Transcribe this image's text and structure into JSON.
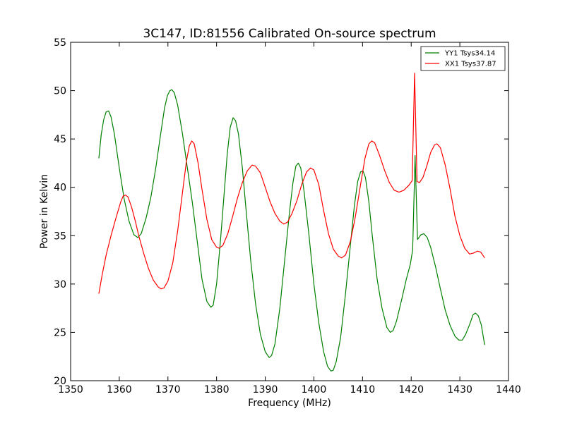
{
  "chart_data": {
    "type": "line",
    "title": "3C147, ID:81556 Calibrated On-source spectrum",
    "xlabel": "Frequency (MHz)",
    "ylabel": "Power in Kelvin",
    "xlim": [
      1350,
      1440
    ],
    "ylim": [
      20,
      55
    ],
    "xticks": [
      1350,
      1360,
      1370,
      1380,
      1390,
      1400,
      1410,
      1420,
      1430,
      1440
    ],
    "yticks": [
      20,
      25,
      30,
      35,
      40,
      45,
      50,
      55
    ],
    "grid": false,
    "legend_position": "top-right",
    "series": [
      {
        "name": "YY1 Tsys34.14",
        "color": "#008000",
        "points": [
          [
            1355.8,
            43.0
          ],
          [
            1356.3,
            45.5
          ],
          [
            1356.8,
            47.0
          ],
          [
            1357.3,
            47.8
          ],
          [
            1357.8,
            47.9
          ],
          [
            1358.3,
            47.3
          ],
          [
            1359.0,
            45.5
          ],
          [
            1360.0,
            42.0
          ],
          [
            1361.0,
            38.8
          ],
          [
            1362.0,
            36.5
          ],
          [
            1363.0,
            35.1
          ],
          [
            1363.8,
            34.8
          ],
          [
            1364.5,
            35.2
          ],
          [
            1365.5,
            36.8
          ],
          [
            1366.5,
            39.0
          ],
          [
            1367.5,
            42.0
          ],
          [
            1368.5,
            45.5
          ],
          [
            1369.3,
            48.2
          ],
          [
            1369.9,
            49.5
          ],
          [
            1370.4,
            50.0
          ],
          [
            1370.8,
            50.1
          ],
          [
            1371.3,
            49.8
          ],
          [
            1372.0,
            48.5
          ],
          [
            1373.0,
            45.5
          ],
          [
            1374.0,
            42.0
          ],
          [
            1375.0,
            38.5
          ],
          [
            1376.0,
            34.5
          ],
          [
            1377.0,
            30.5
          ],
          [
            1378.0,
            28.2
          ],
          [
            1378.8,
            27.6
          ],
          [
            1379.3,
            27.8
          ],
          [
            1380.0,
            30.0
          ],
          [
            1380.8,
            34.5
          ],
          [
            1381.5,
            39.0
          ],
          [
            1382.2,
            43.5
          ],
          [
            1382.8,
            46.2
          ],
          [
            1383.4,
            47.2
          ],
          [
            1383.9,
            46.9
          ],
          [
            1384.5,
            45.5
          ],
          [
            1385.3,
            42.0
          ],
          [
            1386.0,
            38.0
          ],
          [
            1387.0,
            32.5
          ],
          [
            1388.0,
            28.0
          ],
          [
            1389.0,
            24.8
          ],
          [
            1390.0,
            23.0
          ],
          [
            1390.8,
            22.4
          ],
          [
            1391.3,
            22.6
          ],
          [
            1392.0,
            23.8
          ],
          [
            1393.0,
            27.5
          ],
          [
            1394.0,
            32.5
          ],
          [
            1395.0,
            37.5
          ],
          [
            1395.7,
            40.5
          ],
          [
            1396.3,
            42.2
          ],
          [
            1396.8,
            42.5
          ],
          [
            1397.3,
            42.0
          ],
          [
            1398.0,
            39.5
          ],
          [
            1399.0,
            35.0
          ],
          [
            1400.0,
            30.0
          ],
          [
            1401.0,
            26.0
          ],
          [
            1402.0,
            23.0
          ],
          [
            1402.8,
            21.5
          ],
          [
            1403.5,
            21.0
          ],
          [
            1404.0,
            21.1
          ],
          [
            1404.6,
            22.0
          ],
          [
            1405.5,
            24.5
          ],
          [
            1406.5,
            29.0
          ],
          [
            1407.5,
            34.0
          ],
          [
            1408.3,
            38.0
          ],
          [
            1409.0,
            40.6
          ],
          [
            1409.6,
            41.6
          ],
          [
            1410.1,
            41.7
          ],
          [
            1410.6,
            41.0
          ],
          [
            1411.3,
            38.5
          ],
          [
            1412.0,
            35.0
          ],
          [
            1413.0,
            30.5
          ],
          [
            1414.0,
            27.5
          ],
          [
            1415.0,
            25.5
          ],
          [
            1415.7,
            25.0
          ],
          [
            1416.3,
            25.2
          ],
          [
            1417.0,
            26.2
          ],
          [
            1418.0,
            28.3
          ],
          [
            1419.0,
            30.5
          ],
          [
            1419.8,
            32.0
          ],
          [
            1420.3,
            33.5
          ],
          [
            1420.8,
            43.3
          ],
          [
            1421.3,
            34.6
          ],
          [
            1422.0,
            35.1
          ],
          [
            1422.6,
            35.2
          ],
          [
            1423.3,
            34.8
          ],
          [
            1424.0,
            33.8
          ],
          [
            1425.0,
            31.8
          ],
          [
            1426.0,
            29.5
          ],
          [
            1427.0,
            27.3
          ],
          [
            1428.0,
            25.7
          ],
          [
            1429.0,
            24.6
          ],
          [
            1429.8,
            24.2
          ],
          [
            1430.5,
            24.2
          ],
          [
            1431.2,
            24.8
          ],
          [
            1432.0,
            25.8
          ],
          [
            1432.7,
            26.8
          ],
          [
            1433.2,
            27.0
          ],
          [
            1433.8,
            26.7
          ],
          [
            1434.4,
            25.8
          ],
          [
            1435.1,
            23.7
          ]
        ]
      },
      {
        "name": "XX1 Tsys37.87",
        "color": "#ff0000",
        "points": [
          [
            1355.8,
            29.0
          ],
          [
            1356.5,
            31.0
          ],
          [
            1357.3,
            33.0
          ],
          [
            1358.3,
            35.0
          ],
          [
            1359.3,
            36.8
          ],
          [
            1360.3,
            38.5
          ],
          [
            1360.8,
            39.1
          ],
          [
            1361.3,
            39.2
          ],
          [
            1361.8,
            39.0
          ],
          [
            1362.5,
            38.0
          ],
          [
            1363.3,
            36.5
          ],
          [
            1364.0,
            35.0
          ],
          [
            1365.0,
            33.2
          ],
          [
            1366.0,
            31.6
          ],
          [
            1367.0,
            30.4
          ],
          [
            1368.0,
            29.7
          ],
          [
            1368.6,
            29.5
          ],
          [
            1369.2,
            29.6
          ],
          [
            1370.0,
            30.3
          ],
          [
            1371.0,
            32.2
          ],
          [
            1372.0,
            35.5
          ],
          [
            1373.0,
            39.5
          ],
          [
            1373.8,
            42.7
          ],
          [
            1374.4,
            44.3
          ],
          [
            1374.9,
            44.8
          ],
          [
            1375.4,
            44.5
          ],
          [
            1376.2,
            42.5
          ],
          [
            1377.0,
            39.8
          ],
          [
            1378.0,
            36.7
          ],
          [
            1379.0,
            34.6
          ],
          [
            1380.0,
            33.8
          ],
          [
            1380.5,
            33.7
          ],
          [
            1381.3,
            34.0
          ],
          [
            1382.3,
            35.2
          ],
          [
            1383.3,
            37.0
          ],
          [
            1384.3,
            38.9
          ],
          [
            1385.3,
            40.5
          ],
          [
            1386.3,
            41.7
          ],
          [
            1387.3,
            42.3
          ],
          [
            1388.0,
            42.2
          ],
          [
            1389.0,
            41.5
          ],
          [
            1390.0,
            40.0
          ],
          [
            1391.0,
            38.5
          ],
          [
            1392.0,
            37.3
          ],
          [
            1393.0,
            36.5
          ],
          [
            1393.8,
            36.2
          ],
          [
            1394.6,
            36.4
          ],
          [
            1395.5,
            37.3
          ],
          [
            1396.5,
            38.6
          ],
          [
            1397.5,
            40.3
          ],
          [
            1398.5,
            41.6
          ],
          [
            1399.3,
            42.0
          ],
          [
            1400.0,
            41.8
          ],
          [
            1401.0,
            40.3
          ],
          [
            1402.0,
            37.6
          ],
          [
            1403.0,
            35.2
          ],
          [
            1404.0,
            33.6
          ],
          [
            1405.0,
            32.9
          ],
          [
            1405.7,
            32.7
          ],
          [
            1406.5,
            33.0
          ],
          [
            1407.5,
            34.4
          ],
          [
            1408.5,
            36.9
          ],
          [
            1409.5,
            40.0
          ],
          [
            1410.5,
            43.0
          ],
          [
            1411.3,
            44.5
          ],
          [
            1411.9,
            44.8
          ],
          [
            1412.5,
            44.6
          ],
          [
            1413.5,
            43.3
          ],
          [
            1414.5,
            41.8
          ],
          [
            1415.5,
            40.5
          ],
          [
            1416.5,
            39.7
          ],
          [
            1417.5,
            39.5
          ],
          [
            1418.5,
            39.7
          ],
          [
            1419.5,
            40.2
          ],
          [
            1420.2,
            40.7
          ],
          [
            1420.7,
            51.8
          ],
          [
            1421.2,
            40.6
          ],
          [
            1421.7,
            40.5
          ],
          [
            1422.4,
            41.0
          ],
          [
            1423.2,
            42.2
          ],
          [
            1424.0,
            43.6
          ],
          [
            1424.8,
            44.4
          ],
          [
            1425.3,
            44.5
          ],
          [
            1426.0,
            44.1
          ],
          [
            1427.0,
            42.3
          ],
          [
            1428.0,
            39.8
          ],
          [
            1429.0,
            37.0
          ],
          [
            1430.0,
            35.0
          ],
          [
            1431.0,
            33.7
          ],
          [
            1432.0,
            33.1
          ],
          [
            1432.8,
            33.2
          ],
          [
            1433.6,
            33.4
          ],
          [
            1434.3,
            33.3
          ],
          [
            1435.1,
            32.7
          ]
        ]
      }
    ]
  }
}
